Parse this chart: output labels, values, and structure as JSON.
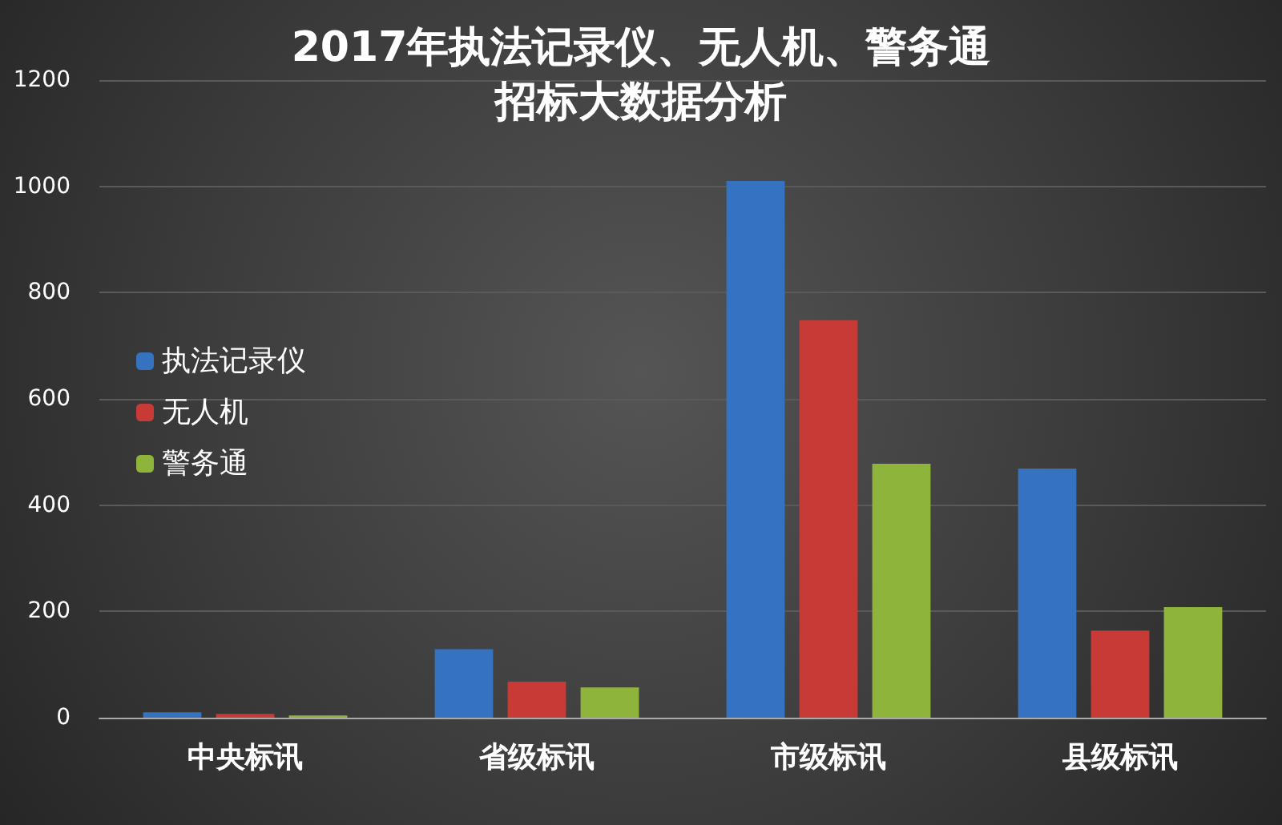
{
  "chart_data": {
    "type": "bar",
    "title": "2017年执法记录仪、无人机、警务通招标大数据分析",
    "categories": [
      "中央标讯",
      "省级标讯",
      "市级标讯",
      "县级标讯"
    ],
    "series": [
      {
        "name": "执法记录仪",
        "color": "#3572c0",
        "values": [
          10,
          129,
          1010,
          469
        ]
      },
      {
        "name": "无人机",
        "color": "#c73a36",
        "values": [
          7,
          68,
          748,
          164
        ]
      },
      {
        "name": "警务通",
        "color": "#8fb43c",
        "values": [
          4,
          57,
          478,
          208
        ]
      }
    ],
    "ylim": [
      0,
      1200
    ],
    "yticks": [
      0,
      200,
      400,
      600,
      800,
      1000,
      1200
    ],
    "grid": "y",
    "legend": "left"
  }
}
